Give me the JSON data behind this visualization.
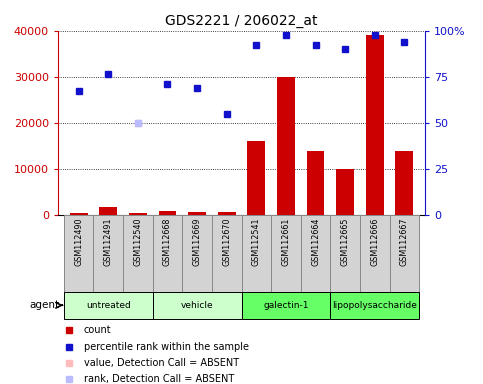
{
  "title": "GDS2221 / 206022_at",
  "samples": [
    "GSM112490",
    "GSM112491",
    "GSM112540",
    "GSM112668",
    "GSM112669",
    "GSM112670",
    "GSM112541",
    "GSM112661",
    "GSM112664",
    "GSM112665",
    "GSM112666",
    "GSM112667"
  ],
  "agents": [
    {
      "label": "untreated",
      "start": 0,
      "end": 3,
      "color": "#ccffcc"
    },
    {
      "label": "vehicle",
      "start": 3,
      "end": 6,
      "color": "#ccffcc"
    },
    {
      "label": "galectin-1",
      "start": 6,
      "end": 9,
      "color": "#66ff66"
    },
    {
      "label": "lipopolysaccharide",
      "start": 9,
      "end": 12,
      "color": "#66ff66"
    }
  ],
  "count_values": [
    400,
    1800,
    400,
    900,
    600,
    600,
    16000,
    30000,
    14000,
    10000,
    39000,
    14000
  ],
  "percentile_values": [
    27000,
    30500,
    null,
    28500,
    27500,
    22000,
    37000,
    39000,
    37000,
    36000,
    39000,
    37500
  ],
  "absent_value_index": 2,
  "absent_value_val": 20000,
  "absent_rank_index": 2,
  "absent_rank_val": 20000,
  "left_ylim": [
    0,
    40000
  ],
  "right_ylim": [
    0,
    100
  ],
  "left_yticks": [
    0,
    10000,
    20000,
    30000,
    40000
  ],
  "right_yticks": [
    0,
    25,
    50,
    75,
    100
  ],
  "right_yticklabels": [
    "0",
    "25",
    "50",
    "75",
    "100%"
  ],
  "bar_color": "#cc0000",
  "square_color": "#1111cc",
  "absent_value_color": "#ffbbbb",
  "absent_rank_color": "#bbbbff",
  "legend_items": [
    {
      "label": "count",
      "color": "#cc0000"
    },
    {
      "label": "percentile rank within the sample",
      "color": "#1111cc"
    },
    {
      "label": "value, Detection Call = ABSENT",
      "color": "#ffbbbb"
    },
    {
      "label": "rank, Detection Call = ABSENT",
      "color": "#bbbbff"
    }
  ],
  "agent_label": "agent",
  "left_axis_color": "#cc0000",
  "right_axis_color": "#1111cc",
  "tick_fontsize": 8,
  "title_fontsize": 10,
  "sample_box_color": "#d3d3d3",
  "sample_box_edge": "#888888"
}
